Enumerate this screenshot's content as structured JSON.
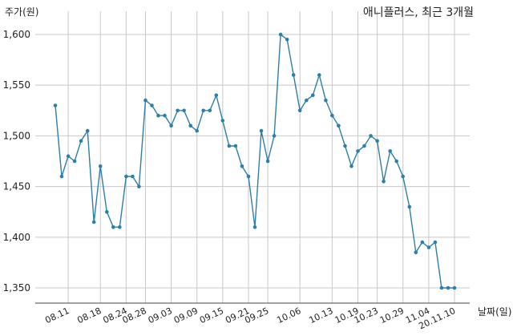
{
  "chart_data": {
    "type": "line",
    "title": "애니플러스, 최근 3개월",
    "ylabel": "주가(원)",
    "xlabel": "날짜(일)",
    "ylim": [
      1335,
      1615
    ],
    "yticks": [
      1350,
      1400,
      1450,
      1500,
      1550,
      1600
    ],
    "ytick_labels": [
      "1,350",
      "1,400",
      "1,450",
      "1,500",
      "1,550",
      "1,600"
    ],
    "xtick_labels": [
      "08.11",
      "08.18",
      "08.24",
      "08.28",
      "09.03",
      "09.09",
      "09.15",
      "09.21",
      "09.25",
      "10.06",
      "10.13",
      "10.19",
      "10.23",
      "10.29",
      "11.04",
      "20.11.10"
    ],
    "xtick_index": [
      2,
      7,
      11,
      14,
      18,
      22,
      26,
      30,
      33,
      38,
      43,
      47,
      50,
      54,
      58,
      62
    ],
    "grid": true,
    "colors": {
      "line": "#2e7ea8",
      "grid": "#c8c8c8",
      "axis": "#444444"
    },
    "series": [
      {
        "values": [
          1530,
          1460,
          1480,
          1475,
          1495,
          1505,
          1415,
          1470,
          1425,
          1410,
          1410,
          1460,
          1460,
          1450,
          1535,
          1530,
          1520,
          1520,
          1510,
          1525,
          1525,
          1510,
          1505,
          1525,
          1525,
          1540,
          1515,
          1490,
          1490,
          1470,
          1460,
          1410,
          1505,
          1475,
          1500,
          1600,
          1595,
          1560,
          1525,
          1535,
          1540,
          1560,
          1535,
          1520,
          1510,
          1490,
          1470,
          1485,
          1490,
          1500,
          1495,
          1455,
          1485,
          1475,
          1460,
          1430,
          1385,
          1395,
          1390,
          1395,
          1350,
          1350,
          1350
        ]
      }
    ]
  }
}
